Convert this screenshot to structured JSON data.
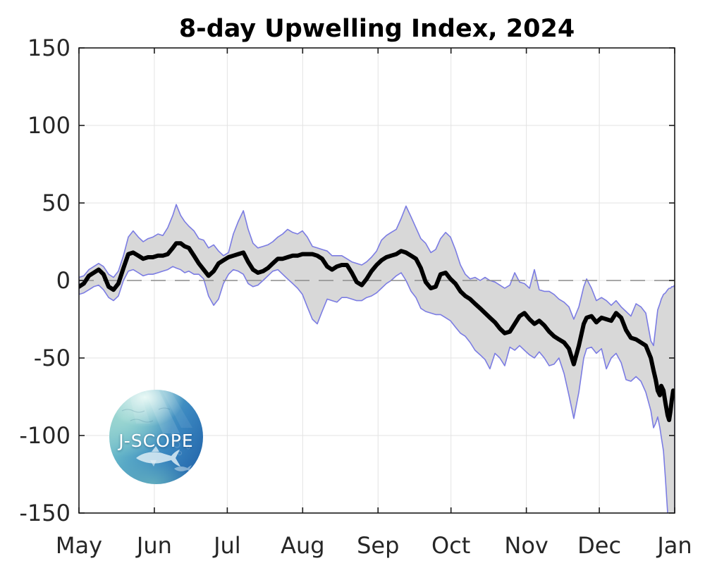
{
  "title": "8-day Upwelling Index, 2024",
  "logo": {
    "text": "J-SCOPE"
  },
  "colors": {
    "mean_line": "#000000",
    "band_fill": "#d8d8d8",
    "band_edge": "#7b7ce3",
    "zero_line": "#8c8c8c",
    "grid": "#e3e3e3",
    "axis": "#1a1a1a",
    "tick_label": "#262626"
  },
  "chart_data": {
    "type": "line",
    "title": "8-day Upwelling Index, 2024",
    "xlabel": "",
    "ylabel": "",
    "grid": true,
    "legend": "none",
    "x_axis": {
      "unit": "days since May 1",
      "range": [
        0,
        245
      ],
      "tick_days": [
        0,
        31,
        61,
        92,
        123,
        153,
        184,
        214,
        245
      ],
      "tick_labels": [
        "May",
        "Jun",
        "Jul",
        "Aug",
        "Sep",
        "Oct",
        "Nov",
        "Dec",
        "Jan"
      ]
    },
    "y_axis": {
      "range": [
        -150,
        150
      ],
      "ticks": [
        150,
        100,
        50,
        0,
        -50,
        -100,
        -150
      ]
    },
    "zero_reference_line": {
      "value": 0,
      "style": "dashed"
    },
    "days": [
      0,
      2,
      4.1,
      6.1,
      8.1,
      10.1,
      12.2,
      14.2,
      16.2,
      18.3,
      20.3,
      22.3,
      24.4,
      26.4,
      28.4,
      30.4,
      32.5,
      34.5,
      36.5,
      38.6,
      40,
      41.8,
      43.5,
      45.2,
      47.3,
      49.3,
      51.3,
      53.3,
      55.4,
      57.4,
      59.4,
      61.5,
      63.5,
      65.5,
      67.6,
      69.6,
      71.6,
      73.6,
      75.7,
      77.7,
      79.7,
      81.8,
      83.8,
      85.8,
      87.9,
      89.9,
      91.9,
      93.9,
      96,
      98,
      100,
      102.1,
      104.1,
      106.1,
      108.1,
      110.2,
      112.2,
      114.2,
      116.3,
      118.3,
      120.3,
      122.4,
      124.4,
      126.4,
      128.4,
      130.5,
      132.5,
      134.5,
      136.6,
      138.6,
      140.6,
      142.6,
      144.7,
      146.7,
      148.7,
      150.8,
      152.8,
      154.8,
      156.9,
      158.9,
      160.9,
      162.9,
      165,
      167,
      169,
      171.1,
      173.1,
      175.1,
      177.2,
      179.2,
      181.2,
      183.2,
      185.3,
      187.3,
      189.3,
      191.4,
      193.4,
      195.4,
      197.4,
      199.5,
      201.5,
      203.5,
      205.6,
      207.6,
      208.8,
      210.8,
      212.8,
      214.9,
      216.9,
      218.9,
      220.9,
      223,
      225,
      227,
      229.1,
      231.1,
      233.1,
      235.2,
      236.3,
      237.2,
      238,
      238.9,
      239.5,
      240.4,
      241.2,
      242.1,
      242.7,
      243.3,
      243.8,
      244.4,
      245
    ],
    "series": [
      {
        "name": "ensemble mean",
        "color": "#000000",
        "width": 6,
        "values": [
          -4,
          -2,
          3,
          5,
          7,
          4,
          -4,
          -6,
          -2,
          8,
          17,
          18,
          16,
          14,
          15,
          15,
          16,
          16,
          17,
          21,
          24,
          24,
          22,
          21,
          16,
          11,
          7,
          3,
          6,
          11,
          13,
          15,
          16,
          17,
          18,
          12,
          7,
          5,
          6,
          8,
          11,
          14,
          14,
          15,
          16,
          16,
          17,
          17,
          17,
          16,
          14,
          9,
          7,
          9,
          10,
          10,
          5,
          -1,
          -3,
          1,
          6,
          10,
          13,
          15,
          16,
          17,
          19,
          18,
          16,
          14,
          8,
          -1,
          -5,
          -4,
          4,
          5,
          1,
          -2,
          -7,
          -10,
          -12,
          -15,
          -18,
          -21,
          -24,
          -27,
          -31,
          -34,
          -33,
          -28,
          -23,
          -21,
          -25,
          -28,
          -26,
          -29,
          -33,
          -36,
          -38,
          -40,
          -44,
          -54,
          -42,
          -28,
          -24,
          -23,
          -27,
          -24,
          -25,
          -26,
          -21,
          -24,
          -32,
          -37,
          -38,
          -40,
          -42,
          -50,
          -58,
          -64,
          -71,
          -74,
          -68,
          -71,
          -79,
          -87,
          -90,
          -84,
          -77,
          -71,
          -72
        ]
      },
      {
        "name": "ensemble upper bound",
        "color": "#7b7ce3",
        "width": 1.6,
        "values": [
          2,
          3,
          7,
          9,
          11,
          9,
          4,
          2,
          6,
          16,
          28,
          32,
          28,
          25,
          27,
          28,
          30,
          29,
          34,
          42,
          49,
          42,
          38,
          35,
          32,
          27,
          26,
          21,
          23,
          19,
          16,
          18,
          30,
          38,
          45,
          33,
          24,
          21,
          22,
          23,
          25,
          28,
          30,
          33,
          31,
          30,
          32,
          28,
          22,
          21,
          20,
          19,
          16,
          16,
          16,
          14,
          12,
          11,
          10,
          12,
          15,
          19,
          26,
          29,
          31,
          33,
          40,
          48,
          41,
          34,
          27,
          24,
          18,
          20,
          27,
          31,
          28,
          20,
          10,
          4,
          1,
          2,
          0,
          2,
          0,
          -1,
          -3,
          -5,
          -3,
          5,
          -1,
          -2,
          -5,
          7,
          -6,
          -7,
          -7,
          -9,
          -12,
          -14,
          -17,
          -25,
          -17,
          -4,
          1,
          -5,
          -13,
          -11,
          -13,
          -16,
          -13,
          -17,
          -20,
          -23,
          -15,
          -17,
          -21,
          -39,
          -42,
          -30,
          -19,
          -15,
          -12,
          -9,
          -8,
          -6,
          -5,
          -5,
          -4,
          -4,
          -3
        ]
      },
      {
        "name": "ensemble lower bound",
        "color": "#7b7ce3",
        "width": 1.6,
        "values": [
          -9,
          -8,
          -6,
          -4,
          -3,
          -6,
          -11,
          -13,
          -10,
          0,
          6,
          7,
          5,
          3,
          4,
          4,
          5,
          6,
          7,
          9,
          8,
          7,
          5,
          6,
          4,
          4,
          1,
          -10,
          -16,
          -12,
          -2,
          4,
          7,
          6,
          4,
          -2,
          -4,
          -3,
          0,
          3,
          6,
          7,
          4,
          1,
          -2,
          -5,
          -9,
          -17,
          -25,
          -28,
          -20,
          -12,
          -13,
          -14,
          -11,
          -11,
          -12,
          -13,
          -13,
          -11,
          -10,
          -8,
          -5,
          -2,
          0,
          3,
          5,
          0,
          -7,
          -11,
          -18,
          -20,
          -21,
          -22,
          -22,
          -24,
          -26,
          -30,
          -34,
          -36,
          -40,
          -45,
          -48,
          -51,
          -57,
          -47,
          -50,
          -55,
          -43,
          -45,
          -42,
          -45,
          -48,
          -50,
          -46,
          -50,
          -55,
          -54,
          -50,
          -60,
          -74,
          -89,
          -72,
          -50,
          -44,
          -43,
          -47,
          -44,
          -57,
          -50,
          -47,
          -53,
          -64,
          -65,
          -62,
          -65,
          -72,
          -84,
          -95,
          -92,
          -88,
          -95,
          -101,
          -110,
          -128,
          -150,
          -155,
          -156,
          -154,
          -152,
          -150
        ]
      }
    ],
    "band": {
      "fill": "#d8d8d8",
      "between": [
        "ensemble upper bound",
        "ensemble lower bound"
      ]
    }
  }
}
